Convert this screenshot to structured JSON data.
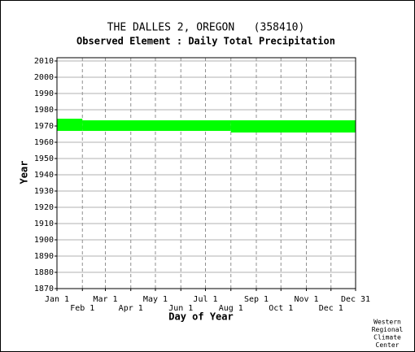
{
  "chart_data": {
    "type": "range_bar",
    "title": "THE DALLES 2, OREGON   (358410)",
    "subtitle": "Observed Element : Daily Total Precipitation",
    "x_label": "Day of Year",
    "y_label": "Year",
    "color": "#00ff00",
    "grid": true,
    "xlim": [
      1,
      365
    ],
    "ylim": [
      1870,
      2012
    ],
    "xticks": [
      {
        "value": 1,
        "label": "Jan 1"
      },
      {
        "value": 32,
        "label": "Feb 1"
      },
      {
        "value": 60,
        "label": "Mar 1"
      },
      {
        "value": 91,
        "label": "Apr 1"
      },
      {
        "value": 121,
        "label": "May 1"
      },
      {
        "value": 152,
        "label": "Jun 1"
      },
      {
        "value": 182,
        "label": "Jul 1"
      },
      {
        "value": 213,
        "label": "Aug 1"
      },
      {
        "value": 244,
        "label": "Sep 1"
      },
      {
        "value": 274,
        "label": "Oct 1"
      },
      {
        "value": 305,
        "label": "Nov 1"
      },
      {
        "value": 335,
        "label": "Dec 1"
      },
      {
        "value": 365,
        "label": "Dec 31"
      }
    ],
    "yticks": [
      1870,
      1880,
      1890,
      1900,
      1910,
      1920,
      1930,
      1940,
      1950,
      1960,
      1970,
      1980,
      1990,
      2000,
      2010
    ],
    "segments": [
      {
        "x": [
          1,
          32
        ],
        "y": [
          1967,
          1974.5
        ]
      },
      {
        "x": [
          32,
          213
        ],
        "y": [
          1967,
          1973.5
        ]
      },
      {
        "x": [
          213,
          365
        ],
        "y": [
          1966,
          1973.5
        ]
      }
    ],
    "footer": [
      "Western",
      "Regional",
      "Climate",
      "Center"
    ]
  }
}
